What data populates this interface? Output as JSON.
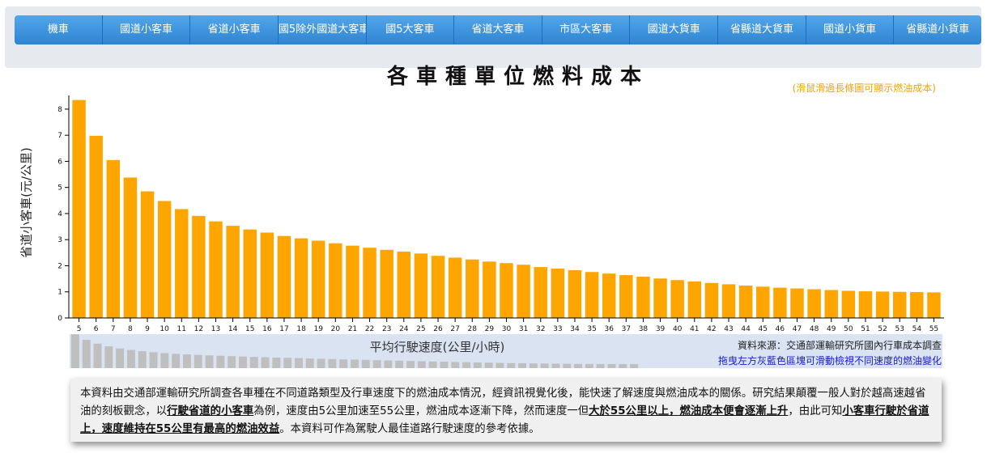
{
  "nav": {
    "tabs": [
      {
        "label": "機車"
      },
      {
        "label": "國道小客車"
      },
      {
        "label": "省道小客車"
      },
      {
        "label": "國5除外國道大客車"
      },
      {
        "label": "國5大客車"
      },
      {
        "label": "省道大客車"
      },
      {
        "label": "市區大客車"
      },
      {
        "label": "國道大貨車"
      },
      {
        "label": "省縣道大貨車"
      },
      {
        "label": "國道小貨車"
      },
      {
        "label": "省縣道小貨車"
      }
    ]
  },
  "chart": {
    "title": "各車種單位燃料成本",
    "hint": "(滑鼠滑過長條圖可顯示燃油成本)",
    "source": "資料來源：交通部運輸研究所國內行車成本調查",
    "drag_hint": "拖曳左方灰藍色區塊可滑動檢視不同速度的燃油變化"
  },
  "colors": {
    "bar": "#FFA500",
    "nav_tab": "#3a8ddb",
    "brush": "#d9e3f2",
    "hint": "#f0a500",
    "drag_hint": "#1a1ad0"
  },
  "chart_data": {
    "type": "bar",
    "title": "各車種單位燃料成本",
    "xlabel": "平均行駛速度(公里/小時)",
    "ylabel": "省道小客車(元/公里)",
    "ylim": [
      0,
      8.4
    ],
    "yticks": [
      0,
      1,
      2,
      3,
      4,
      5,
      6,
      7,
      8
    ],
    "grid": false,
    "categories": [
      "5",
      "6",
      "7",
      "8",
      "9",
      "10",
      "11",
      "12",
      "13",
      "14",
      "15",
      "16",
      "17",
      "18",
      "19",
      "20",
      "21",
      "22",
      "23",
      "24",
      "25",
      "26",
      "27",
      "28",
      "29",
      "30",
      "31",
      "32",
      "33",
      "34",
      "35",
      "36",
      "37",
      "38",
      "39",
      "40",
      "41",
      "42",
      "43",
      "44",
      "45",
      "46",
      "47",
      "48",
      "49",
      "50",
      "51",
      "52",
      "53",
      "54",
      "55"
    ],
    "values": [
      8.35,
      6.98,
      6.05,
      5.38,
      4.85,
      4.48,
      4.17,
      3.91,
      3.7,
      3.53,
      3.39,
      3.27,
      3.14,
      3.05,
      2.96,
      2.86,
      2.77,
      2.69,
      2.61,
      2.54,
      2.47,
      2.38,
      2.31,
      2.24,
      2.16,
      2.1,
      2.04,
      1.95,
      1.89,
      1.83,
      1.76,
      1.7,
      1.64,
      1.58,
      1.51,
      1.45,
      1.4,
      1.34,
      1.29,
      1.24,
      1.2,
      1.16,
      1.13,
      1.1,
      1.07,
      1.04,
      1.02,
      1.01,
      1.0,
      0.99,
      0.98
    ],
    "brush_label": "平均行駛速度(公里/小時)"
  },
  "description": {
    "p1": "本資料由交通部運輸研究所調查各車種在不同道路類型及行車速度下的燃油成本情況，經資訊視覺化後，能快速了解速度與燃油成本的關係。研究結果顛覆一般人對於越高速越省油的刻板觀念，以",
    "b1": "行駛省道的小客車",
    "p2": "為例，速度由5公里加速至55公里，燃油成本逐漸下降，然而速度一但",
    "b2": "大於55公里以上，燃油成本便會逐漸上升",
    "p3": "，由此可知",
    "b3": "小客車行駛於省道上，速度維持在55公里有最高的燃油效益",
    "p4": "。本資料可作為駕駛人最佳道路行駛速度的參考依據。"
  }
}
